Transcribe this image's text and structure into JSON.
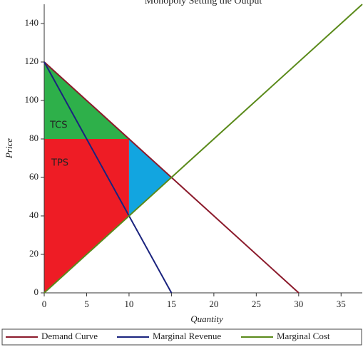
{
  "chart_data": {
    "type": "line",
    "title": "Monopoly Setting the Output",
    "x_label": "Quantity",
    "y_label": "Price",
    "xlim": [
      0,
      37.5
    ],
    "ylim": [
      0,
      150
    ],
    "xticks": [
      0,
      5,
      10,
      15,
      20,
      25,
      30,
      35
    ],
    "yticks": [
      0,
      20,
      40,
      60,
      80,
      100,
      120,
      140
    ],
    "series": [
      {
        "name": "Demand Curve",
        "color": "#8b1a2b",
        "x": [
          0,
          30
        ],
        "values": [
          120,
          0
        ]
      },
      {
        "name": "Marginal Revenue",
        "color": "#1a237e",
        "x": [
          0,
          15
        ],
        "values": [
          120,
          0
        ]
      },
      {
        "name": "Marginal Cost",
        "color": "#5a8a1a",
        "x": [
          0,
          37.5
        ],
        "values": [
          0,
          150
        ]
      }
    ],
    "areas": [
      {
        "name": "TCS",
        "color": "#2eb04a",
        "x": [
          0,
          10,
          0
        ],
        "values": [
          120,
          80,
          80
        ]
      },
      {
        "name": "TPS",
        "color": "#ee1c25",
        "x": [
          0,
          10,
          10,
          0
        ],
        "values": [
          80,
          80,
          40,
          0
        ]
      },
      {
        "color": "#12a5e0",
        "x": [
          10,
          15,
          10
        ],
        "values": [
          80,
          60,
          40
        ]
      }
    ]
  }
}
